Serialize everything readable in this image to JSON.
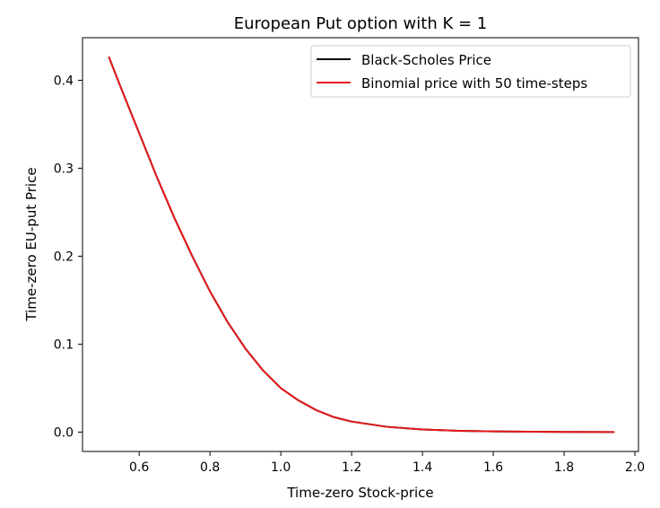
{
  "chart_data": {
    "type": "line",
    "title": "European Put option with K = 1",
    "xlabel": "Time-zero Stock-price",
    "ylabel": "Time-zero EU-put Price",
    "xlim": [
      0.44,
      2.01
    ],
    "ylim": [
      -0.022,
      0.4484
    ],
    "xticks": [
      0.6,
      0.8,
      1.0,
      1.2,
      1.4,
      1.6,
      1.8,
      2.0
    ],
    "xtick_labels": [
      "0.6",
      "0.8",
      "1.0",
      "1.2",
      "1.4",
      "1.6",
      "1.8",
      "2.0"
    ],
    "yticks": [
      0.0,
      0.1,
      0.2,
      0.3,
      0.4
    ],
    "ytick_labels": [
      "0.0",
      "0.1",
      "0.2",
      "0.3",
      "0.4"
    ],
    "grid": false,
    "legend": "top-right",
    "x": [
      0.515,
      0.55,
      0.6,
      0.65,
      0.7,
      0.75,
      0.8,
      0.85,
      0.9,
      0.95,
      1.0,
      1.05,
      1.1,
      1.15,
      1.2,
      1.3,
      1.4,
      1.5,
      1.6,
      1.7,
      1.8,
      1.94
    ],
    "series": [
      {
        "name": "Black-Scholes Price",
        "color": "#000000",
        "values": [
          0.426,
          0.39,
          0.34,
          0.29,
          0.243,
          0.2,
          0.16,
          0.125,
          0.095,
          0.07,
          0.05,
          0.036,
          0.025,
          0.017,
          0.012,
          0.006,
          0.003,
          0.0015,
          0.0008,
          0.0004,
          0.0002,
          0.0001
        ]
      },
      {
        "name": "Binomial price with 50 time-steps",
        "color": "#e41a1c",
        "values": [
          0.426,
          0.39,
          0.34,
          0.29,
          0.243,
          0.2,
          0.16,
          0.125,
          0.095,
          0.07,
          0.05,
          0.036,
          0.025,
          0.017,
          0.012,
          0.006,
          0.003,
          0.0015,
          0.0008,
          0.0004,
          0.0002,
          0.0001
        ]
      }
    ]
  }
}
